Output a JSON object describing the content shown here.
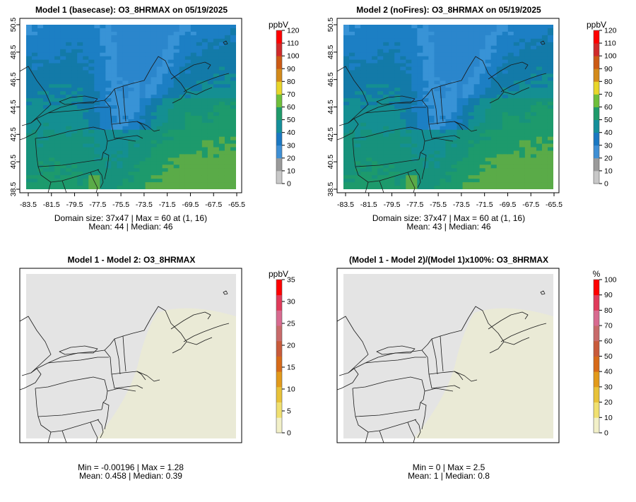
{
  "colors": {
    "panel_bg": "#e4e4e4",
    "map_line": "#1a1a1a",
    "ramp_abs": [
      "#c8c8c8",
      "#9a9a9a",
      "#3f8fd4",
      "#1a78c2",
      "#148f9a",
      "#1f9a6a",
      "#6fbf3a",
      "#e8d62a",
      "#d38a1a",
      "#cc5a14",
      "#d02a2a",
      "#ff0000"
    ],
    "ramp_diff": [
      "#f2f0c8",
      "#f0e070",
      "#e8c238",
      "#e29a1a",
      "#d76a18",
      "#c85a3a",
      "#c86a6a",
      "#d86a90",
      "#e03a5a",
      "#ff0000"
    ],
    "field_abs": [
      "#2b86cc",
      "#3893d6",
      "#1c7fc4",
      "#137aa8",
      "#148f92",
      "#17927c",
      "#1d9a6c",
      "#5aab48",
      "#b0c84a"
    ],
    "field_diff": "#ebebd4"
  },
  "chart_data": [
    {
      "type": "heatmap",
      "title": "Model 1 (basecase): O3_8HRMAX on 05/19/2025",
      "unit": "ppbV",
      "field": "abs",
      "x_ticks": [
        "-83.5",
        "-81.5",
        "-79.5",
        "-77.5",
        "-75.5",
        "-73.5",
        "-71.5",
        "-69.5",
        "-67.5",
        "-65.5"
      ],
      "y_ticks": [
        "38.5",
        "40.5",
        "42.5",
        "44.5",
        "46.5",
        "48.5",
        "50.5"
      ],
      "legend_ticks": [
        "0",
        "10",
        "20",
        "30",
        "40",
        "50",
        "60",
        "70",
        "80",
        "90",
        "100",
        "110",
        "120"
      ],
      "legend_max": 120,
      "stats_line1": "Domain size: 37x47 | Max = 60 at (1, 16)",
      "stats_line2": "Mean: 44 |  Median: 46"
    },
    {
      "type": "heatmap",
      "title": "Model 2 (noFires): O3_8HRMAX on 05/19/2025",
      "unit": "ppbV",
      "field": "abs",
      "x_ticks": [
        "-83.5",
        "-81.5",
        "-79.5",
        "-77.5",
        "-75.5",
        "-73.5",
        "-71.5",
        "-69.5",
        "-67.5",
        "-65.5"
      ],
      "y_ticks": [
        "38.5",
        "40.5",
        "42.5",
        "44.5",
        "46.5",
        "48.5",
        "50.5"
      ],
      "legend_ticks": [
        "0",
        "10",
        "20",
        "30",
        "40",
        "50",
        "60",
        "70",
        "80",
        "90",
        "100",
        "110",
        "120"
      ],
      "legend_max": 120,
      "stats_line1": "Domain size: 37x47 | Max = 60 at (1, 16)",
      "stats_line2": "Mean: 43 |  Median: 46"
    },
    {
      "type": "heatmap",
      "title": "Model 1 - Model 2: O3_8HRMAX",
      "unit": "ppbV",
      "field": "diff",
      "x_ticks": [],
      "y_ticks": [],
      "legend_ticks": [
        "0",
        "5",
        "10",
        "15",
        "20",
        "25",
        "30",
        "35"
      ],
      "legend_max": 35,
      "stats_line1": "Min = -0.00196 | Max = 1.28",
      "stats_line2": "Mean: 0.458 |  Median: 0.39"
    },
    {
      "type": "heatmap",
      "title": "(Model 1 - Model 2)/(Model 1)x100%: O3_8HRMAX",
      "unit": "%",
      "field": "diff",
      "x_ticks": [],
      "y_ticks": [],
      "legend_ticks": [
        "0",
        "10",
        "20",
        "30",
        "40",
        "50",
        "60",
        "70",
        "80",
        "90",
        "100"
      ],
      "legend_max": 100,
      "stats_line1": "Min = 0 | Max = 2.5",
      "stats_line2": "Mean: 1 |  Median: 0.8"
    }
  ]
}
